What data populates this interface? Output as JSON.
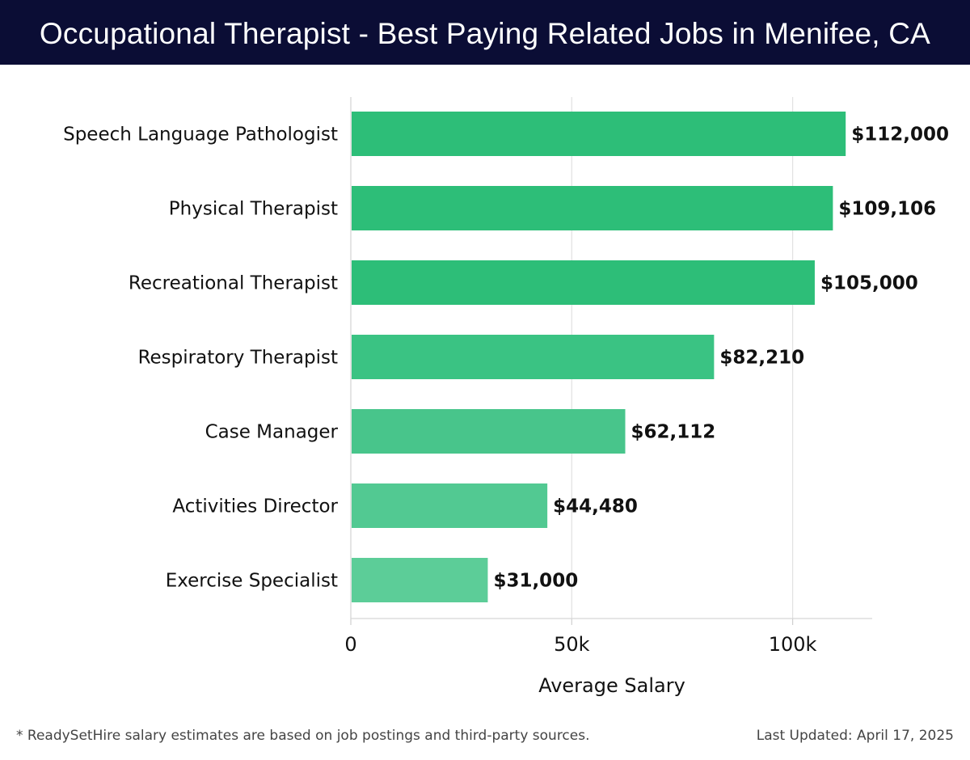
{
  "header": {
    "title": "Occupational Therapist - Best Paying Related Jobs in Menifee, CA"
  },
  "colors": {
    "header_bg": "#0b0d35",
    "bar_colors": [
      "#2dbe78",
      "#2dbe78",
      "#2dbe78",
      "#3ac383",
      "#48c58b",
      "#52c992",
      "#5ccd98"
    ],
    "gridline": "#e2e2e2"
  },
  "chart_data": {
    "type": "bar",
    "orientation": "horizontal",
    "categories": [
      "Speech Language Pathologist",
      "Physical Therapist",
      "Recreational Therapist",
      "Respiratory Therapist",
      "Case Manager",
      "Activities Director",
      "Exercise Specialist"
    ],
    "values": [
      112000,
      109106,
      105000,
      82210,
      62112,
      44480,
      31000
    ],
    "value_labels": [
      "$112,000",
      "$109,106",
      "$105,000",
      "$82,210",
      "$62,112",
      "$44,480",
      "$31,000"
    ],
    "xlabel": "Average Salary",
    "ylabel": "",
    "xlim": [
      0,
      118000
    ],
    "x_ticks": [
      0,
      50000,
      100000
    ],
    "x_tick_labels": [
      "0",
      "50k",
      "100k"
    ],
    "grid": true
  },
  "footer": {
    "note": "* ReadySetHire salary estimates are based on job postings and third-party sources.",
    "updated": "Last Updated: April 17, 2025"
  }
}
